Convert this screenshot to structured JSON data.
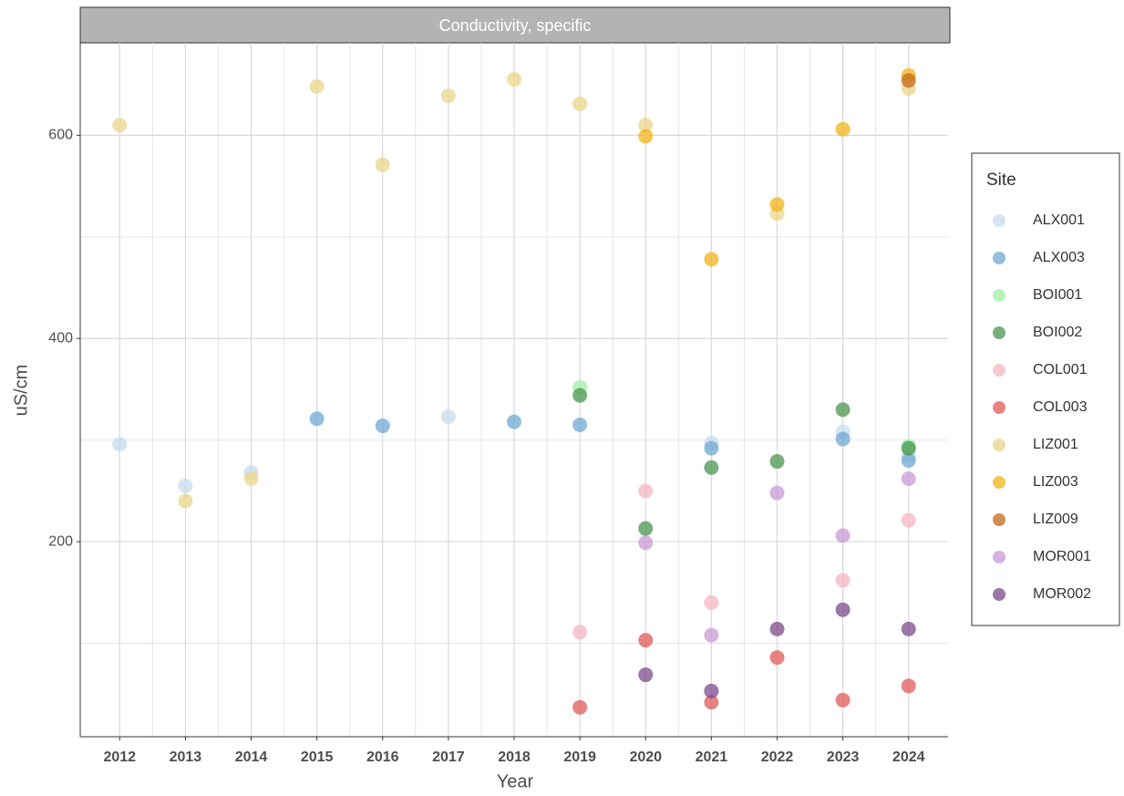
{
  "chart_data": {
    "type": "scatter",
    "title": "Conductivity, specific",
    "x_label": "Year",
    "y_label": "uS/cm",
    "legend_title": "Site",
    "legend": "right",
    "grid": true,
    "x": [
      2012,
      2013,
      2014,
      2015,
      2016,
      2017,
      2018,
      2019,
      2020,
      2021,
      2022,
      2023,
      2024
    ],
    "xlim": [
      2011.4,
      2024.6
    ],
    "xticks": [
      2012,
      2013,
      2014,
      2015,
      2016,
      2017,
      2018,
      2019,
      2020,
      2021,
      2022,
      2023,
      2024
    ],
    "minor_xticks": [
      2012.5,
      2013.5,
      2014.5,
      2015.5,
      2016.5,
      2017.5,
      2018.5,
      2019.5,
      2020.5,
      2021.5,
      2022.5,
      2023.5
    ],
    "ylim": [
      8,
      691
    ],
    "yticks": [
      200,
      400,
      600
    ],
    "minor_yticks": [
      100,
      300,
      500
    ],
    "series": [
      {
        "name": "ALX001",
        "color": "#c6dbef",
        "values": [
          296,
          255,
          268,
          null,
          null,
          323,
          null,
          null,
          null,
          297,
          null,
          308,
          285
        ]
      },
      {
        "name": "ALX003",
        "color": "#6fa8d3",
        "values": [
          null,
          null,
          null,
          321,
          314,
          null,
          318,
          315,
          null,
          292,
          null,
          301,
          280
        ]
      },
      {
        "name": "BOI001",
        "color": "#9ff0a6",
        "values": [
          null,
          null,
          null,
          null,
          null,
          null,
          null,
          352,
          null,
          null,
          null,
          null,
          294
        ]
      },
      {
        "name": "BOI002",
        "color": "#4b944f",
        "values": [
          null,
          null,
          null,
          null,
          null,
          null,
          null,
          344,
          213,
          273,
          279,
          330,
          292
        ]
      },
      {
        "name": "COL001",
        "color": "#f5b5c1",
        "values": [
          null,
          null,
          null,
          null,
          null,
          null,
          null,
          111,
          250,
          140,
          null,
          162,
          221
        ]
      },
      {
        "name": "COL003",
        "color": "#e05a5a",
        "values": [
          null,
          null,
          null,
          null,
          null,
          null,
          null,
          37,
          103,
          42,
          86,
          44,
          58
        ]
      },
      {
        "name": "LIZ001",
        "color": "#e8d58a",
        "values": [
          610,
          240,
          262,
          648,
          571,
          639,
          655,
          631,
          610,
          null,
          523,
          null,
          646
        ]
      },
      {
        "name": "LIZ003",
        "color": "#f0b41a",
        "values": [
          null,
          null,
          null,
          null,
          null,
          null,
          null,
          null,
          599,
          478,
          532,
          606,
          659
        ]
      },
      {
        "name": "LIZ009",
        "color": "#c46a1a",
        "values": [
          null,
          null,
          null,
          null,
          null,
          null,
          null,
          null,
          null,
          null,
          null,
          null,
          654
        ]
      },
      {
        "name": "MOR001",
        "color": "#c89ad6",
        "values": [
          null,
          null,
          null,
          null,
          null,
          null,
          null,
          null,
          199,
          108,
          248,
          206,
          262
        ]
      },
      {
        "name": "MOR002",
        "color": "#7b4a8a",
        "values": [
          null,
          null,
          null,
          null,
          null,
          null,
          null,
          null,
          69,
          53,
          114,
          133,
          114
        ]
      }
    ]
  }
}
